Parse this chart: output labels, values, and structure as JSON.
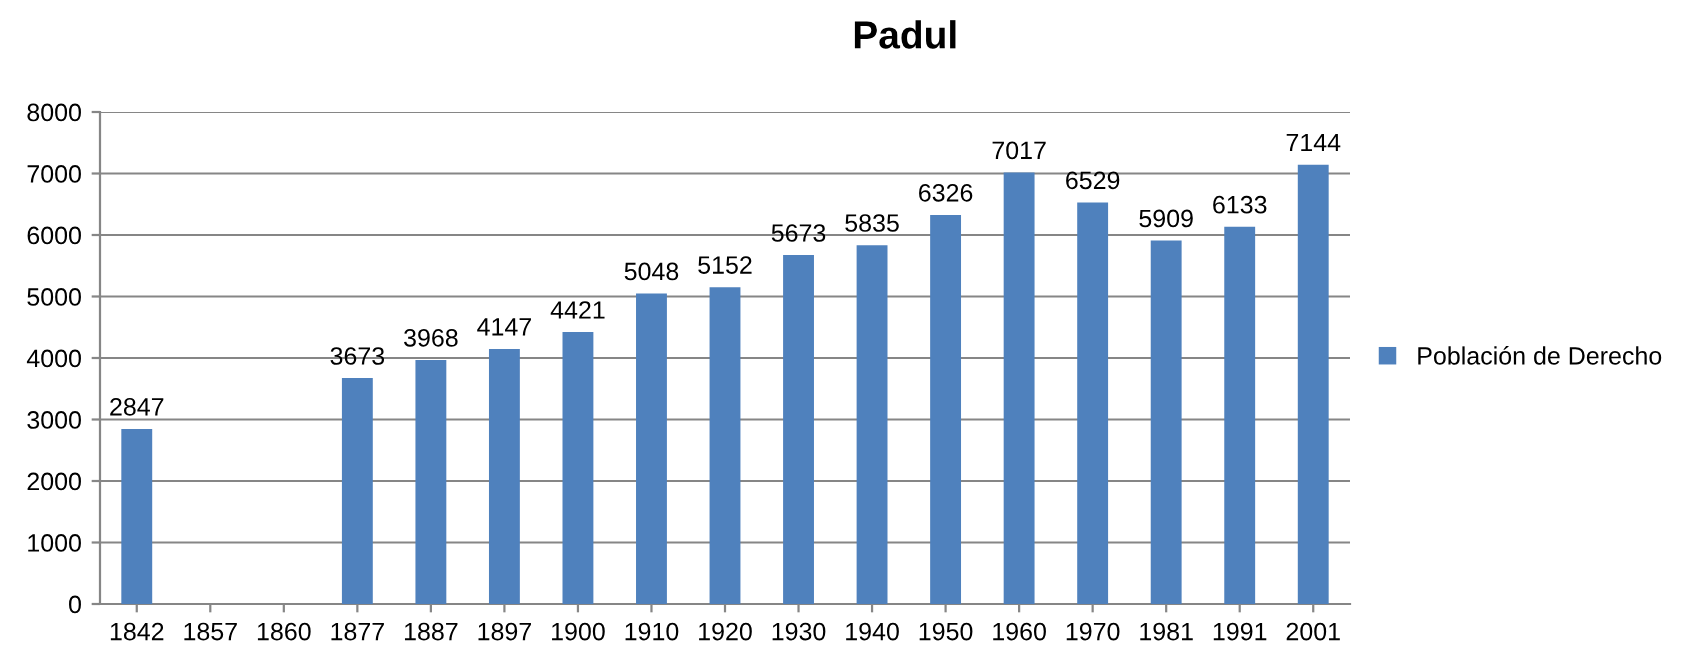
{
  "chart_data": {
    "type": "bar",
    "title": "Padul",
    "categories": [
      "1842",
      "1857",
      "1860",
      "1877",
      "1887",
      "1897",
      "1900",
      "1910",
      "1920",
      "1930",
      "1940",
      "1950",
      "1960",
      "1970",
      "1981",
      "1991",
      "2001"
    ],
    "series": [
      {
        "name": "Población de Derecho",
        "color": "#4f81bd",
        "values": [
          2847,
          null,
          null,
          3673,
          3968,
          4147,
          4421,
          5048,
          5152,
          5673,
          5835,
          6326,
          7017,
          6529,
          5909,
          6133,
          7144
        ]
      }
    ],
    "ylim": [
      0,
      8000
    ],
    "yticks": [
      0,
      1000,
      2000,
      3000,
      4000,
      5000,
      6000,
      7000,
      8000
    ],
    "grid": "y",
    "legend": "right",
    "data_labels": true
  }
}
